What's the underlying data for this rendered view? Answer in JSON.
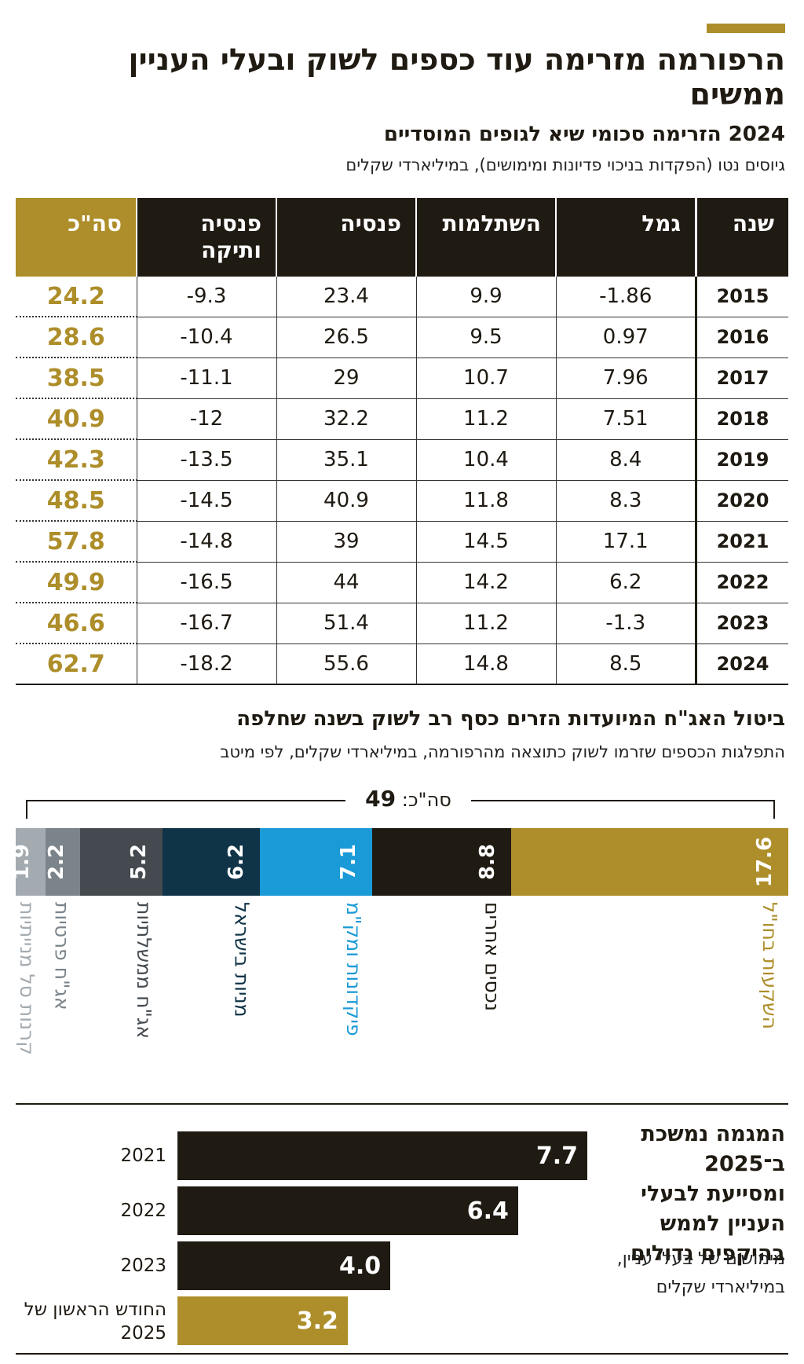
{
  "header": {
    "title": "הרפורמה מזרימה עוד כספים לשוק ובעלי העניין ממשים",
    "subtitle": "2024 הזרימה סכומי שיא לגופים המוסדיים",
    "note": "גיוסים נטו (הפקדות בניכוי פדיונות ומימושים), במיליארדי שקלים"
  },
  "colors": {
    "gold": "#ad8e2a",
    "dark": "#1f1a12"
  },
  "chart_data": [
    {
      "type": "table",
      "columns": [
        "שנה",
        "גמל",
        "השתלמות",
        "פנסיה",
        "פנסיה ותיקה",
        "סה\"כ"
      ],
      "rows": [
        {
          "year": "2015",
          "gemel": "-1.86",
          "hishtalmut": "9.9",
          "pensia": "23.4",
          "vatika": "-9.3",
          "total": "24.2"
        },
        {
          "year": "2016",
          "gemel": "0.97",
          "hishtalmut": "9.5",
          "pensia": "26.5",
          "vatika": "-10.4",
          "total": "28.6"
        },
        {
          "year": "2017",
          "gemel": "7.96",
          "hishtalmut": "10.7",
          "pensia": "29",
          "vatika": "-11.1",
          "total": "38.5"
        },
        {
          "year": "2018",
          "gemel": "7.51",
          "hishtalmut": "11.2",
          "pensia": "32.2",
          "vatika": "-12",
          "total": "40.9"
        },
        {
          "year": "2019",
          "gemel": "8.4",
          "hishtalmut": "10.4",
          "pensia": "35.1",
          "vatika": "-13.5",
          "total": "42.3"
        },
        {
          "year": "2020",
          "gemel": "8.3",
          "hishtalmut": "11.8",
          "pensia": "40.9",
          "vatika": "-14.5",
          "total": "48.5"
        },
        {
          "year": "2021",
          "gemel": "17.1",
          "hishtalmut": "14.5",
          "pensia": "39",
          "vatika": "-14.8",
          "total": "57.8"
        },
        {
          "year": "2022",
          "gemel": "6.2",
          "hishtalmut": "14.2",
          "pensia": "44",
          "vatika": "-16.5",
          "total": "49.9"
        },
        {
          "year": "2023",
          "gemel": "-1.3",
          "hishtalmut": "11.2",
          "pensia": "51.4",
          "vatika": "-16.7",
          "total": "46.6"
        },
        {
          "year": "2024",
          "gemel": "8.5",
          "hishtalmut": "14.8",
          "pensia": "55.6",
          "vatika": "-18.2",
          "total": "62.7"
        }
      ]
    },
    {
      "type": "bar",
      "orientation": "stacked-horizontal",
      "title": "ביטול האג\"ח המיועדות הזרים כסף רב לשוק בשנה שחלפה",
      "subtitle": "התפלגות הכספים שזרמו לשוק כתוצאה מהרפורמה, במיליארדי שקלים, לפי מיטב",
      "total_label": "סה\"כ:",
      "total_value": "49",
      "categories": [
        "השקעות בחו\"ל",
        "נכסים אחרים",
        "פיקדונות ומק\"מ",
        "מניות בישראל",
        "אג\"ח ממשלתיות",
        "אג\"ח פרטיות",
        "קרנות סל מנייתיות"
      ],
      "values": [
        17.6,
        8.8,
        7.1,
        6.2,
        5.2,
        2.2,
        1.9
      ],
      "colors": [
        "#ad8e2a",
        "#1f1a12",
        "#1a9ad6",
        "#0f3347",
        "#444a4f",
        "#7b848a",
        "#a3abb1"
      ],
      "label_colors": [
        "#ad8e2a",
        "#1f1a12",
        "#1a9ad6",
        "#0f3347",
        "#444a4f",
        "#7b848a",
        "#a3abb1"
      ]
    },
    {
      "type": "bar",
      "orientation": "horizontal",
      "title": "המגמה נמשכת ב־2025 ומסייעת לבעלי העניין לממש בהיקפים גדולים",
      "subtitle": "מימושים של בעלי עניין, במיליארדי שקלים",
      "categories": [
        "2021",
        "2022",
        "2023",
        "החודש הראשון של 2025"
      ],
      "values": [
        7.7,
        6.4,
        4.0,
        3.2
      ],
      "display_values": [
        "7.7",
        "6.4",
        "4.0",
        "3.2"
      ],
      "colors": [
        "#1f1a12",
        "#1f1a12",
        "#1f1a12",
        "#ad8e2a"
      ]
    }
  ]
}
